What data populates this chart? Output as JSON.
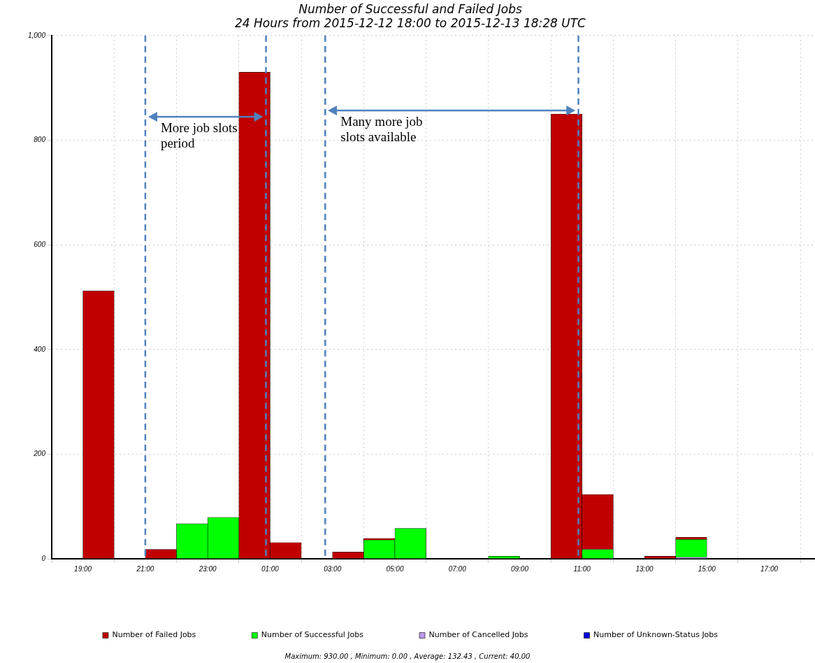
{
  "chart_data": {
    "type": "bar",
    "title": "Number of Successful and Failed Jobs",
    "subtitle": "24 Hours from 2015-12-12 18:00 to 2015-12-13 18:28 UTC",
    "x": [
      "2015-12-12T19:30",
      "2015-12-12T20:30",
      "2015-12-12T21:30",
      "2015-12-12T22:30",
      "2015-12-12T23:30",
      "2015-12-13T00:30",
      "2015-12-13T01:30",
      "2015-12-13T02:30",
      "2015-12-13T03:30",
      "2015-12-13T04:30",
      "2015-12-13T05:30",
      "2015-12-13T06:30",
      "2015-12-13T07:30",
      "2015-12-13T08:30",
      "2015-12-13T09:30",
      "2015-12-13T10:30",
      "2015-12-13T11:30",
      "2015-12-13T12:30",
      "2015-12-13T13:30",
      "2015-12-13T14:30"
    ],
    "stacked": true,
    "series": [
      {
        "name": "Number of Unknown-Status Jobs",
        "color": "#0000dd",
        "values": [
          0,
          0,
          0,
          0,
          0,
          0,
          0,
          0,
          0,
          0,
          0,
          0,
          0,
          0,
          0,
          0,
          0,
          0,
          0,
          0
        ]
      },
      {
        "name": "Number of Cancelled Jobs",
        "color": "#bb99ee",
        "values": [
          0,
          0,
          0,
          0,
          0,
          0,
          0,
          0,
          0,
          0,
          0,
          0,
          0,
          0,
          0,
          0,
          0,
          0,
          0,
          3
        ]
      },
      {
        "name": "Number of Successful Jobs",
        "color": "#00ff00",
        "values": [
          0,
          0,
          0,
          67,
          79,
          0,
          0,
          0,
          0,
          36,
          58,
          0,
          0,
          5,
          0,
          0,
          18,
          0,
          0,
          34
        ]
      },
      {
        "name": "Number of Failed Jobs",
        "color": "#c00000",
        "values": [
          512,
          0,
          18,
          0,
          0,
          930,
          31,
          0,
          13,
          3,
          0,
          0,
          0,
          0,
          0,
          850,
          105,
          0,
          5,
          4
        ]
      }
    ],
    "xlim": [
      "2015-12-12T18:00",
      "2015-12-13T18:28"
    ],
    "xticks": [
      {
        "value": "2015-12-12T19:00",
        "label": "19:00"
      },
      {
        "value": "2015-12-12T21:00",
        "label": "21:00"
      },
      {
        "value": "2015-12-12T23:00",
        "label": "23:00"
      },
      {
        "value": "2015-12-13T01:00",
        "label": "01:00"
      },
      {
        "value": "2015-12-13T03:00",
        "label": "03:00"
      },
      {
        "value": "2015-12-13T05:00",
        "label": "05:00"
      },
      {
        "value": "2015-12-13T07:00",
        "label": "07:00"
      },
      {
        "value": "2015-12-13T09:00",
        "label": "09:00"
      },
      {
        "value": "2015-12-13T11:00",
        "label": "11:00"
      },
      {
        "value": "2015-12-13T13:00",
        "label": "13:00"
      },
      {
        "value": "2015-12-13T15:00",
        "label": "15:00"
      },
      {
        "value": "2015-12-13T17:00",
        "label": "17:00"
      }
    ],
    "ylim": [
      0,
      1000
    ],
    "yticks": [
      0,
      200,
      400,
      600,
      800,
      {
        "value": 1000,
        "label": "1,000"
      }
    ],
    "grid": true,
    "legend": "bottom",
    "ref_lines": [
      {
        "axis": "x",
        "value": "2015-12-12T21:00",
        "color": "#4f81bd",
        "line_style": "dashed"
      },
      {
        "axis": "x",
        "value": "2015-12-13T00:52",
        "color": "#4f81bd",
        "line_style": "dashed"
      },
      {
        "axis": "x",
        "value": "2015-12-13T02:46",
        "color": "#4f81bd",
        "line_style": "dashed"
      },
      {
        "axis": "x",
        "value": "2015-12-13T10:53",
        "color": "#4f81bd",
        "line_style": "dashed"
      }
    ],
    "annotations": [
      "More job slots period",
      "Many more job slots available",
      "Maximum: 930.00 , Minimum: 0.00 , Average: 132.43 , Current: 40.00"
    ]
  }
}
